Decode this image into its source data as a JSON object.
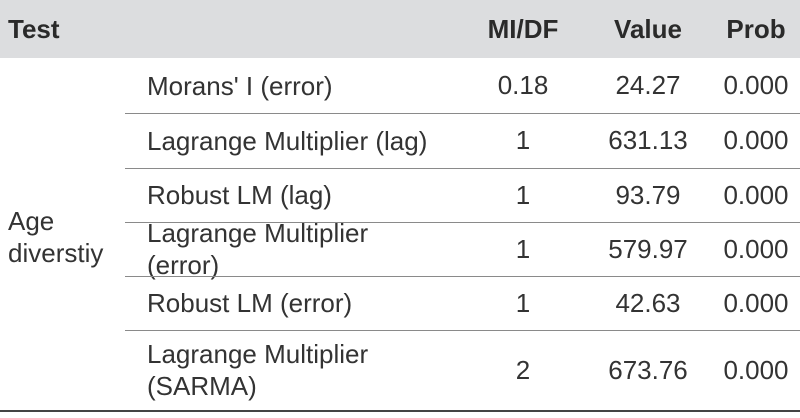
{
  "header": {
    "test": "Test",
    "midf": "MI/DF",
    "value": "Value",
    "prob": "Prob"
  },
  "group_label": "Age diverstiy",
  "rows": [
    {
      "test": "Morans' I (error)",
      "midf": "0.18",
      "value": "24.27",
      "prob": "0.000"
    },
    {
      "test": "Lagrange Multiplier (lag)",
      "midf": "1",
      "value": "631.13",
      "prob": "0.000"
    },
    {
      "test": "Robust LM (lag)",
      "midf": "1",
      "value": "93.79",
      "prob": "0.000"
    },
    {
      "test": "Lagrange Multiplier (error)",
      "midf": "1",
      "value": "579.97",
      "prob": "0.000"
    },
    {
      "test": "Robust LM (error)",
      "midf": "1",
      "value": "42.63",
      "prob": "0.000"
    },
    {
      "test": "Lagrange Multiplier (SARMA)",
      "midf": "2",
      "value": "673.76",
      "prob": "0.000"
    }
  ],
  "colors": {
    "header_bg": "#dcdddf"
  }
}
